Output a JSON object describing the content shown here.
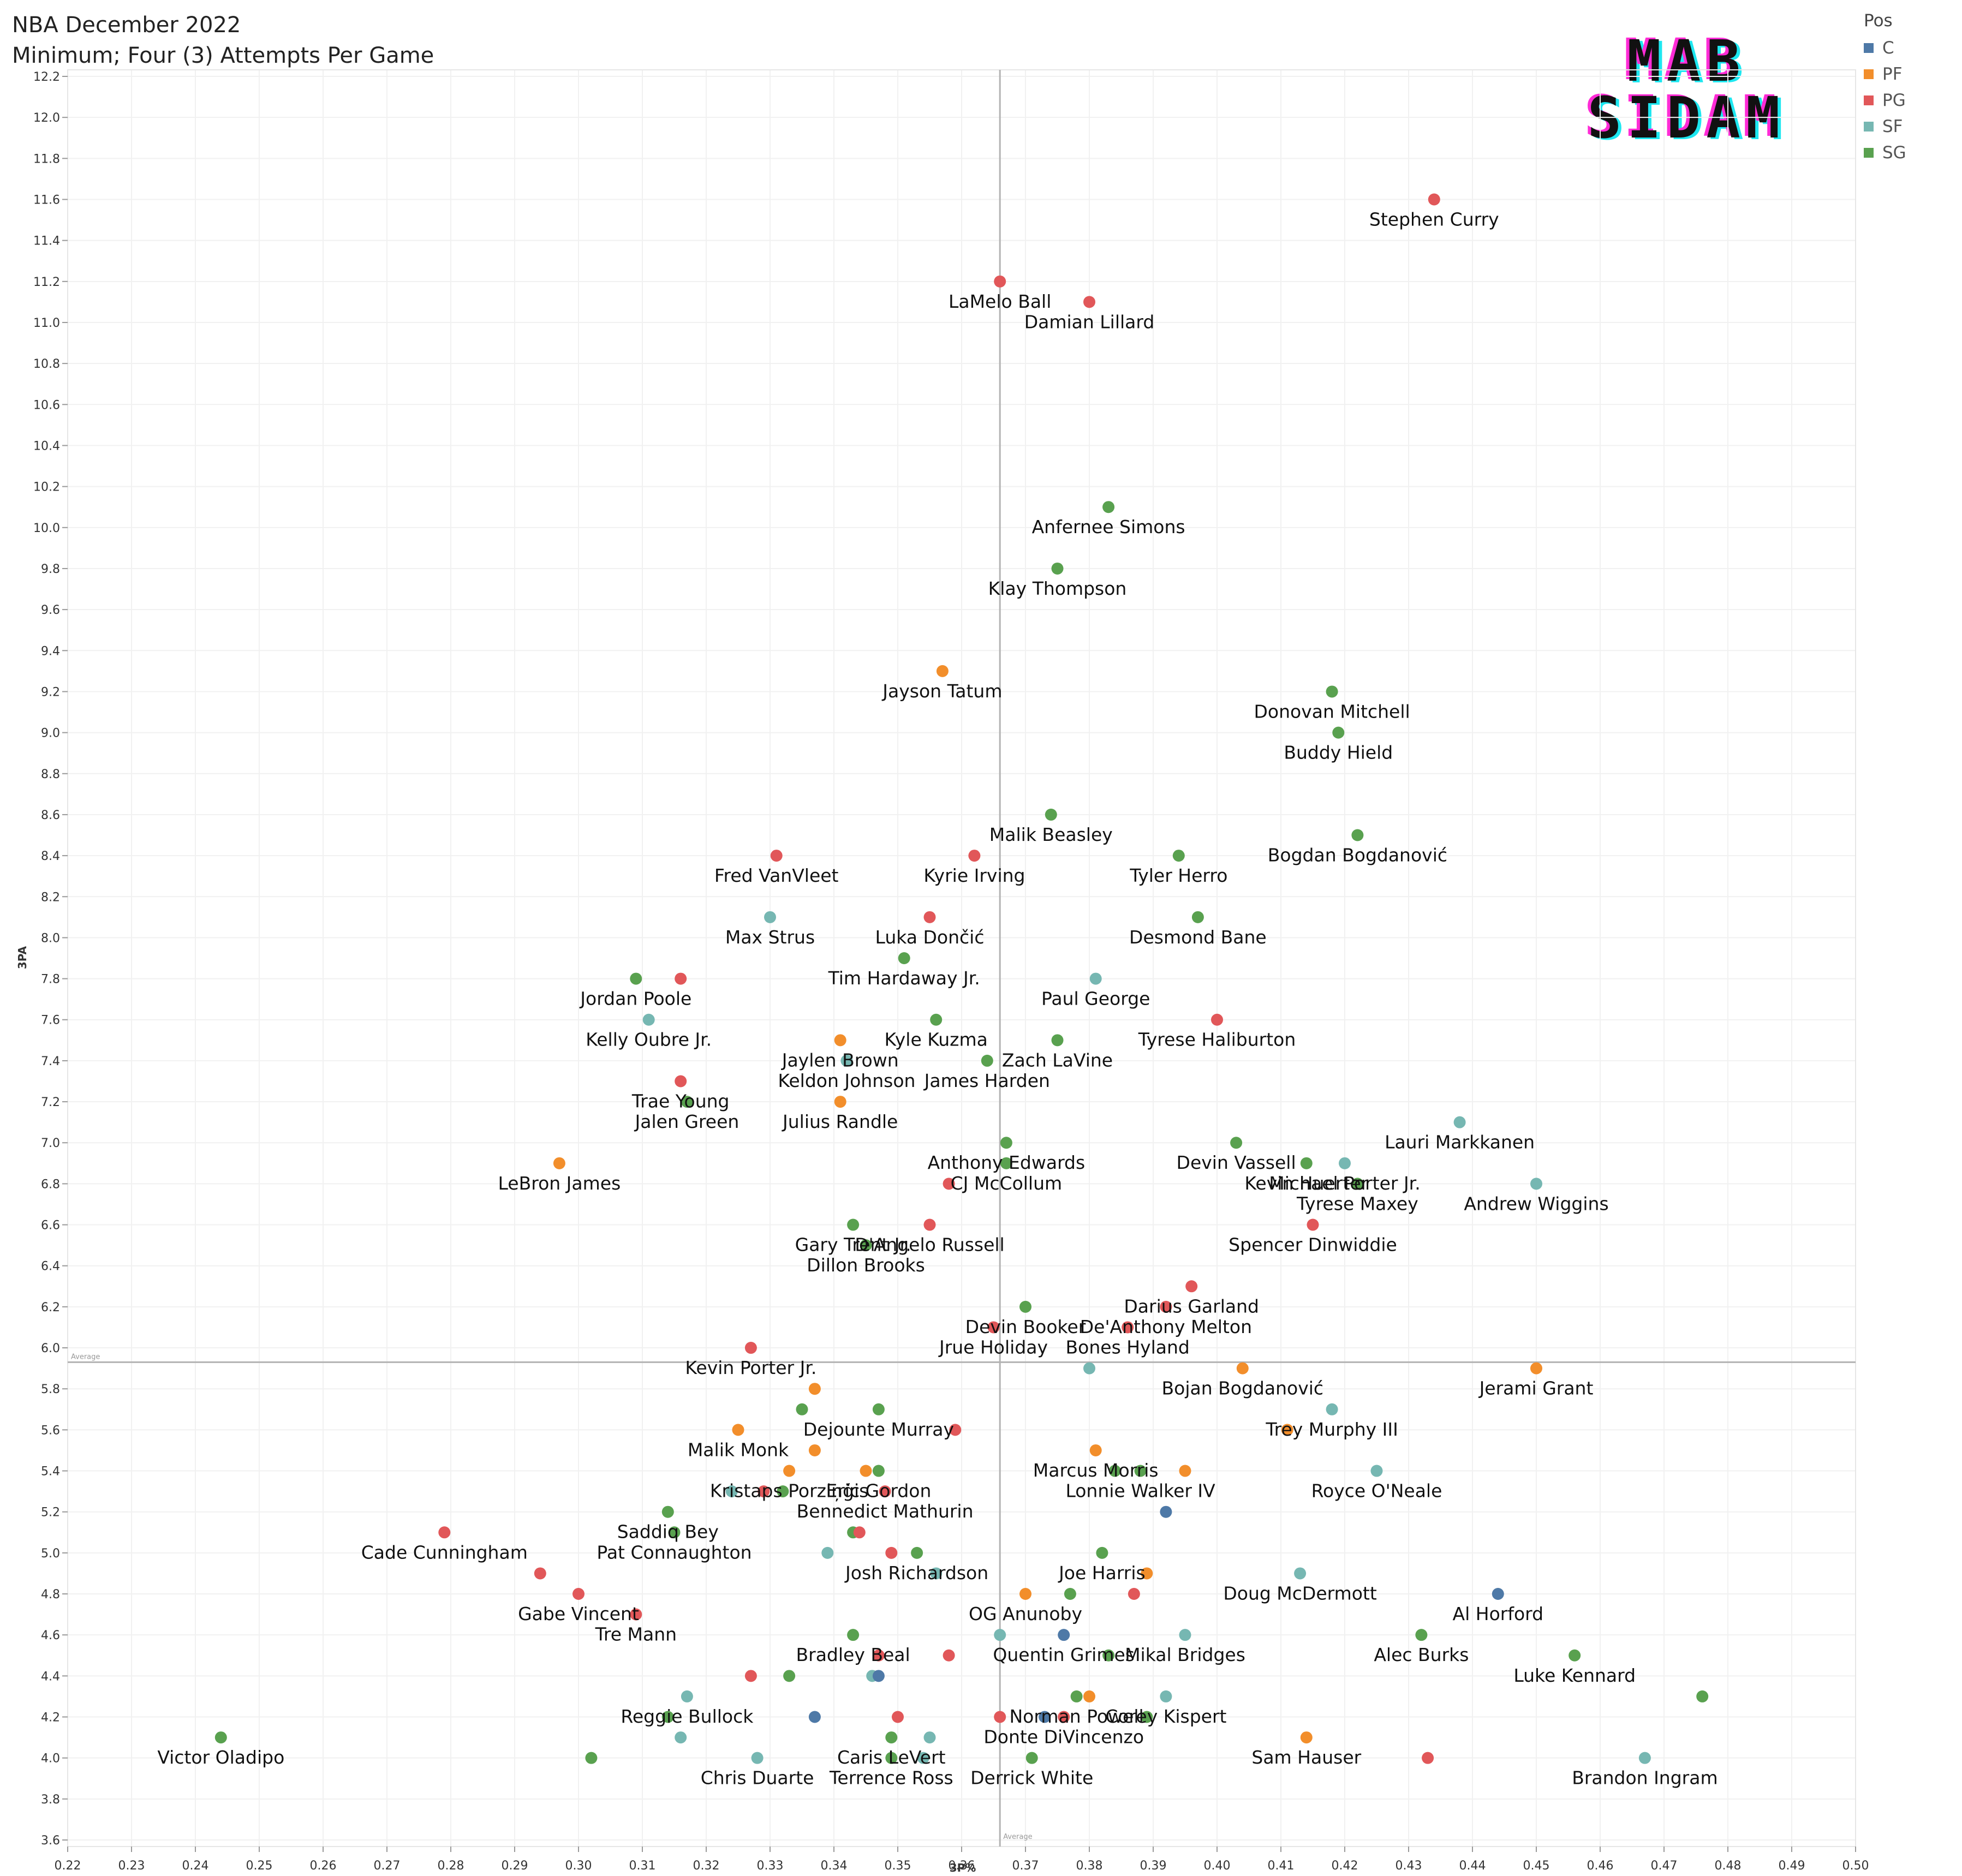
{
  "header": {
    "title": "NBA December 2022",
    "subtitle": "Minimum; Four (3) Attempts Per Game"
  },
  "logo": {
    "line1": "MAB",
    "line2": "SIDAM"
  },
  "chart_data": {
    "type": "scatter",
    "title": "NBA December 2022",
    "subtitle": "Minimum; Four (3) Attempts Per Game",
    "xlabel": "3P%",
    "ylabel": "3PA",
    "xlim": [
      0.22,
      0.5
    ],
    "ylim": [
      3.6,
      12.2
    ],
    "x_ticks": [
      "0.22",
      "0.23",
      "0.24",
      "0.25",
      "0.26",
      "0.27",
      "0.28",
      "0.29",
      "0.30",
      "0.31",
      "0.32",
      "0.33",
      "0.34",
      "0.35",
      "0.36",
      "0.37",
      "0.38",
      "0.39",
      "0.40",
      "0.41",
      "0.42",
      "0.43",
      "0.44",
      "0.45",
      "0.46",
      "0.47",
      "0.48",
      "0.49",
      "0.50"
    ],
    "y_ticks": [
      "3.6",
      "3.8",
      "4.0",
      "4.2",
      "4.4",
      "4.6",
      "4.8",
      "5.0",
      "5.2",
      "5.4",
      "5.6",
      "5.8",
      "6.0",
      "6.2",
      "6.4",
      "6.6",
      "6.8",
      "7.0",
      "7.2",
      "7.4",
      "7.6",
      "7.8",
      "8.0",
      "8.2",
      "8.4",
      "8.6",
      "8.8",
      "9.0",
      "9.2",
      "9.4",
      "9.6",
      "9.8",
      "10.0",
      "10.2",
      "10.4",
      "10.6",
      "10.8",
      "11.0",
      "11.2",
      "11.4",
      "11.6",
      "11.8",
      "12.0",
      "12.2"
    ],
    "grid": true,
    "legend": {
      "title": "Pos",
      "placement": "top-right",
      "items": [
        {
          "name": "C",
          "color": "#4e79a7"
        },
        {
          "name": "PF",
          "color": "#f28e2b"
        },
        {
          "name": "PG",
          "color": "#e15759"
        },
        {
          "name": "SF",
          "color": "#76b7b2"
        },
        {
          "name": "SG",
          "color": "#59a14f"
        }
      ]
    },
    "reference_lines": [
      {
        "axis": "x",
        "value": 0.366,
        "label": "Average"
      },
      {
        "axis": "y",
        "value": 5.93,
        "label": "Average"
      }
    ],
    "points": [
      {
        "x": 0.434,
        "y": 11.6,
        "pos": "PG",
        "label": "Stephen Curry"
      },
      {
        "x": 0.366,
        "y": 11.2,
        "pos": "PG",
        "label": "LaMelo Ball"
      },
      {
        "x": 0.38,
        "y": 11.1,
        "pos": "PG",
        "label": "Damian Lillard"
      },
      {
        "x": 0.383,
        "y": 10.1,
        "pos": "SG",
        "label": "Anfernee Simons"
      },
      {
        "x": 0.375,
        "y": 9.8,
        "pos": "SG",
        "label": "Klay Thompson"
      },
      {
        "x": 0.357,
        "y": 9.3,
        "pos": "PF",
        "label": "Jayson Tatum"
      },
      {
        "x": 0.418,
        "y": 9.2,
        "pos": "SG",
        "label": "Donovan Mitchell"
      },
      {
        "x": 0.419,
        "y": 9.0,
        "pos": "SG",
        "label": "Buddy Hield"
      },
      {
        "x": 0.374,
        "y": 8.6,
        "pos": "SG",
        "label": "Malik Beasley"
      },
      {
        "x": 0.422,
        "y": 8.5,
        "pos": "SG",
        "label": "Bogdan Bogdanović"
      },
      {
        "x": 0.331,
        "y": 8.4,
        "pos": "PG",
        "label": "Fred VanVleet"
      },
      {
        "x": 0.362,
        "y": 8.4,
        "pos": "PG",
        "label": "Kyrie Irving"
      },
      {
        "x": 0.394,
        "y": 8.4,
        "pos": "SG",
        "label": "Tyler Herro"
      },
      {
        "x": 0.33,
        "y": 8.1,
        "pos": "SF",
        "label": "Max Strus"
      },
      {
        "x": 0.355,
        "y": 8.1,
        "pos": "PG",
        "label": "Luka Dončić"
      },
      {
        "x": 0.397,
        "y": 8.1,
        "pos": "SG",
        "label": "Desmond Bane"
      },
      {
        "x": 0.351,
        "y": 7.9,
        "pos": "SG",
        "label": "Tim Hardaway Jr."
      },
      {
        "x": 0.309,
        "y": 7.8,
        "pos": "SG",
        "label": "Jordan Poole"
      },
      {
        "x": 0.316,
        "y": 7.8,
        "pos": "PG",
        "label": ""
      },
      {
        "x": 0.381,
        "y": 7.8,
        "pos": "SF",
        "label": "Paul George"
      },
      {
        "x": 0.311,
        "y": 7.6,
        "pos": "SF",
        "label": "Kelly Oubre Jr."
      },
      {
        "x": 0.356,
        "y": 7.6,
        "pos": "SG",
        "label": "Kyle Kuzma"
      },
      {
        "x": 0.4,
        "y": 7.6,
        "pos": "PG",
        "label": "Tyrese Haliburton"
      },
      {
        "x": 0.341,
        "y": 7.5,
        "pos": "PF",
        "label": "Jaylen Brown"
      },
      {
        "x": 0.375,
        "y": 7.5,
        "pos": "SG",
        "label": "Zach LaVine"
      },
      {
        "x": 0.342,
        "y": 7.4,
        "pos": "SF",
        "label": "Keldon Johnson"
      },
      {
        "x": 0.364,
        "y": 7.4,
        "pos": "SG",
        "label": "James Harden"
      },
      {
        "x": 0.316,
        "y": 7.3,
        "pos": "PG",
        "label": "Trae Young"
      },
      {
        "x": 0.317,
        "y": 7.2,
        "pos": "SG",
        "label": "Jalen Green"
      },
      {
        "x": 0.341,
        "y": 7.2,
        "pos": "PF",
        "label": "Julius Randle"
      },
      {
        "x": 0.438,
        "y": 7.1,
        "pos": "SF",
        "label": "Lauri Markkanen"
      },
      {
        "x": 0.367,
        "y": 7.0,
        "pos": "SG",
        "label": "Anthony Edwards"
      },
      {
        "x": 0.403,
        "y": 7.0,
        "pos": "SG",
        "label": "Devin Vassell"
      },
      {
        "x": 0.297,
        "y": 6.9,
        "pos": "PF",
        "label": "LeBron James"
      },
      {
        "x": 0.367,
        "y": 6.9,
        "pos": "SG",
        "label": "CJ McCollum"
      },
      {
        "x": 0.414,
        "y": 6.9,
        "pos": "SG",
        "label": "Kevin Huerter"
      },
      {
        "x": 0.42,
        "y": 6.9,
        "pos": "SF",
        "label": "Michael Porter Jr."
      },
      {
        "x": 0.358,
        "y": 6.8,
        "pos": "PG",
        "label": ""
      },
      {
        "x": 0.422,
        "y": 6.8,
        "pos": "SG",
        "label": "Tyrese Maxey"
      },
      {
        "x": 0.45,
        "y": 6.8,
        "pos": "SF",
        "label": "Andrew Wiggins"
      },
      {
        "x": 0.343,
        "y": 6.6,
        "pos": "SG",
        "label": "Gary Trent Jr."
      },
      {
        "x": 0.355,
        "y": 6.6,
        "pos": "PG",
        "label": "D'Angelo Russell"
      },
      {
        "x": 0.415,
        "y": 6.6,
        "pos": "PG",
        "label": "Spencer Dinwiddie"
      },
      {
        "x": 0.345,
        "y": 6.5,
        "pos": "SG",
        "label": "Dillon Brooks"
      },
      {
        "x": 0.396,
        "y": 6.3,
        "pos": "PG",
        "label": "Darius Garland"
      },
      {
        "x": 0.37,
        "y": 6.2,
        "pos": "SG",
        "label": "Devin Booker"
      },
      {
        "x": 0.392,
        "y": 6.2,
        "pos": "PG",
        "label": "De'Anthony Melton"
      },
      {
        "x": 0.365,
        "y": 6.1,
        "pos": "PG",
        "label": "Jrue Holiday"
      },
      {
        "x": 0.386,
        "y": 6.1,
        "pos": "PG",
        "label": "Bones Hyland"
      },
      {
        "x": 0.327,
        "y": 6.0,
        "pos": "PG",
        "label": "Kevin Porter Jr."
      },
      {
        "x": 0.38,
        "y": 5.9,
        "pos": "SF",
        "label": ""
      },
      {
        "x": 0.404,
        "y": 5.9,
        "pos": "PF",
        "label": "Bojan Bogdanović"
      },
      {
        "x": 0.45,
        "y": 5.9,
        "pos": "PF",
        "label": "Jerami Grant"
      },
      {
        "x": 0.337,
        "y": 5.8,
        "pos": "PF",
        "label": ""
      },
      {
        "x": 0.335,
        "y": 5.7,
        "pos": "SG",
        "label": ""
      },
      {
        "x": 0.347,
        "y": 5.7,
        "pos": "SG",
        "label": "Dejounte Murray"
      },
      {
        "x": 0.418,
        "y": 5.7,
        "pos": "SF",
        "label": "Trey Murphy III"
      },
      {
        "x": 0.325,
        "y": 5.6,
        "pos": "PF",
        "label": "Malik Monk"
      },
      {
        "x": 0.359,
        "y": 5.6,
        "pos": "PG",
        "label": ""
      },
      {
        "x": 0.411,
        "y": 5.6,
        "pos": "PF",
        "label": ""
      },
      {
        "x": 0.337,
        "y": 5.5,
        "pos": "PF",
        "label": ""
      },
      {
        "x": 0.381,
        "y": 5.5,
        "pos": "PF",
        "label": "Marcus Morris"
      },
      {
        "x": 0.333,
        "y": 5.4,
        "pos": "PF",
        "label": "Kristaps Porziņģis"
      },
      {
        "x": 0.345,
        "y": 5.4,
        "pos": "PF",
        "label": ""
      },
      {
        "x": 0.347,
        "y": 5.4,
        "pos": "SG",
        "label": "Eric Gordon"
      },
      {
        "x": 0.384,
        "y": 5.4,
        "pos": "SG",
        "label": ""
      },
      {
        "x": 0.388,
        "y": 5.4,
        "pos": "SG",
        "label": "Lonnie Walker IV"
      },
      {
        "x": 0.395,
        "y": 5.4,
        "pos": "PF",
        "label": ""
      },
      {
        "x": 0.425,
        "y": 5.4,
        "pos": "SF",
        "label": "Royce O'Neale"
      },
      {
        "x": 0.324,
        "y": 5.3,
        "pos": "SF",
        "label": ""
      },
      {
        "x": 0.329,
        "y": 5.3,
        "pos": "PG",
        "label": ""
      },
      {
        "x": 0.332,
        "y": 5.3,
        "pos": "SG",
        "label": ""
      },
      {
        "x": 0.348,
        "y": 5.3,
        "pos": "PG",
        "label": "Bennedict Mathurin"
      },
      {
        "x": 0.314,
        "y": 5.2,
        "pos": "SG",
        "label": "Saddiq Bey"
      },
      {
        "x": 0.392,
        "y": 5.2,
        "pos": "C",
        "label": ""
      },
      {
        "x": 0.279,
        "y": 5.1,
        "pos": "PG",
        "label": "Cade Cunningham"
      },
      {
        "x": 0.315,
        "y": 5.1,
        "pos": "SG",
        "label": "Pat Connaughton"
      },
      {
        "x": 0.343,
        "y": 5.1,
        "pos": "SG",
        "label": ""
      },
      {
        "x": 0.344,
        "y": 5.1,
        "pos": "PG",
        "label": ""
      },
      {
        "x": 0.339,
        "y": 5.0,
        "pos": "SF",
        "label": ""
      },
      {
        "x": 0.349,
        "y": 5.0,
        "pos": "PG",
        "label": ""
      },
      {
        "x": 0.353,
        "y": 5.0,
        "pos": "SG",
        "label": "Josh Richardson"
      },
      {
        "x": 0.382,
        "y": 5.0,
        "pos": "SG",
        "label": "Joe Harris"
      },
      {
        "x": 0.294,
        "y": 4.9,
        "pos": "PG",
        "label": ""
      },
      {
        "x": 0.356,
        "y": 4.9,
        "pos": "SF",
        "label": ""
      },
      {
        "x": 0.389,
        "y": 4.9,
        "pos": "PF",
        "label": ""
      },
      {
        "x": 0.413,
        "y": 4.9,
        "pos": "SF",
        "label": "Doug McDermott"
      },
      {
        "x": 0.3,
        "y": 4.8,
        "pos": "PG",
        "label": "Gabe Vincent"
      },
      {
        "x": 0.37,
        "y": 4.8,
        "pos": "PF",
        "label": "OG Anunoby"
      },
      {
        "x": 0.377,
        "y": 4.8,
        "pos": "SG",
        "label": ""
      },
      {
        "x": 0.387,
        "y": 4.8,
        "pos": "PG",
        "label": ""
      },
      {
        "x": 0.444,
        "y": 4.8,
        "pos": "C",
        "label": "Al Horford"
      },
      {
        "x": 0.309,
        "y": 4.7,
        "pos": "PG",
        "label": "Tre Mann"
      },
      {
        "x": 0.343,
        "y": 4.6,
        "pos": "SG",
        "label": "Bradley Beal"
      },
      {
        "x": 0.366,
        "y": 4.6,
        "pos": "SF",
        "label": ""
      },
      {
        "x": 0.376,
        "y": 4.6,
        "pos": "C",
        "label": "Quentin Grimes"
      },
      {
        "x": 0.395,
        "y": 4.6,
        "pos": "SF",
        "label": "Mikal Bridges"
      },
      {
        "x": 0.432,
        "y": 4.6,
        "pos": "SG",
        "label": "Alec Burks"
      },
      {
        "x": 0.347,
        "y": 4.5,
        "pos": "PG",
        "label": ""
      },
      {
        "x": 0.358,
        "y": 4.5,
        "pos": "PG",
        "label": ""
      },
      {
        "x": 0.383,
        "y": 4.5,
        "pos": "SG",
        "label": ""
      },
      {
        "x": 0.456,
        "y": 4.5,
        "pos": "SG",
        "label": "Luke Kennard"
      },
      {
        "x": 0.327,
        "y": 4.4,
        "pos": "PG",
        "label": ""
      },
      {
        "x": 0.333,
        "y": 4.4,
        "pos": "SG",
        "label": ""
      },
      {
        "x": 0.346,
        "y": 4.4,
        "pos": "SF",
        "label": ""
      },
      {
        "x": 0.347,
        "y": 4.4,
        "pos": "C",
        "label": ""
      },
      {
        "x": 0.317,
        "y": 4.3,
        "pos": "SF",
        "label": "Reggie Bullock"
      },
      {
        "x": 0.378,
        "y": 4.3,
        "pos": "SG",
        "label": "Norman Powell"
      },
      {
        "x": 0.38,
        "y": 4.3,
        "pos": "PF",
        "label": ""
      },
      {
        "x": 0.392,
        "y": 4.3,
        "pos": "SF",
        "label": "Corey Kispert"
      },
      {
        "x": 0.476,
        "y": 4.3,
        "pos": "SG",
        "label": ""
      },
      {
        "x": 0.314,
        "y": 4.2,
        "pos": "SG",
        "label": ""
      },
      {
        "x": 0.337,
        "y": 4.2,
        "pos": "C",
        "label": ""
      },
      {
        "x": 0.35,
        "y": 4.2,
        "pos": "PG",
        "label": ""
      },
      {
        "x": 0.366,
        "y": 4.2,
        "pos": "PG",
        "label": ""
      },
      {
        "x": 0.373,
        "y": 4.2,
        "pos": "C",
        "label": ""
      },
      {
        "x": 0.376,
        "y": 4.2,
        "pos": "PG",
        "label": "Donte DiVincenzo"
      },
      {
        "x": 0.389,
        "y": 4.2,
        "pos": "SG",
        "label": ""
      },
      {
        "x": 0.244,
        "y": 4.1,
        "pos": "SG",
        "label": "Victor Oladipo"
      },
      {
        "x": 0.316,
        "y": 4.1,
        "pos": "SF",
        "label": ""
      },
      {
        "x": 0.349,
        "y": 4.1,
        "pos": "SG",
        "label": "Caris LeVert"
      },
      {
        "x": 0.355,
        "y": 4.1,
        "pos": "SF",
        "label": ""
      },
      {
        "x": 0.414,
        "y": 4.1,
        "pos": "PF",
        "label": "Sam Hauser"
      },
      {
        "x": 0.302,
        "y": 4.0,
        "pos": "SG",
        "label": ""
      },
      {
        "x": 0.328,
        "y": 4.0,
        "pos": "SF",
        "label": "Chris Duarte"
      },
      {
        "x": 0.349,
        "y": 4.0,
        "pos": "SG",
        "label": "Terrence Ross"
      },
      {
        "x": 0.354,
        "y": 4.0,
        "pos": "SF",
        "label": ""
      },
      {
        "x": 0.371,
        "y": 4.0,
        "pos": "SG",
        "label": "Derrick White"
      },
      {
        "x": 0.433,
        "y": 4.0,
        "pos": "PG",
        "label": ""
      },
      {
        "x": 0.467,
        "y": 4.0,
        "pos": "SF",
        "label": "Brandon Ingram"
      }
    ]
  }
}
